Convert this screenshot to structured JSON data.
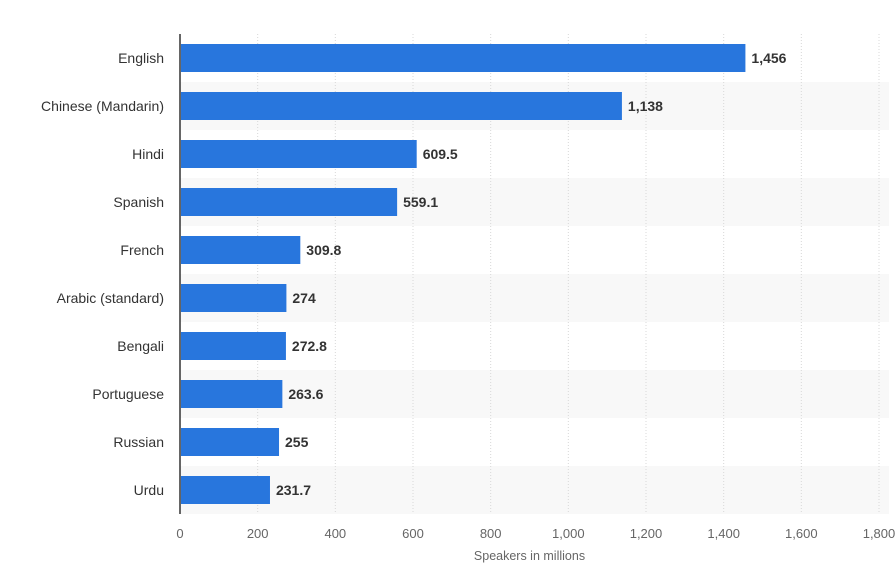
{
  "chart_data": {
    "type": "bar",
    "orientation": "horizontal",
    "categories": [
      "English",
      "Chinese (Mandarin)",
      "Hindi",
      "Spanish",
      "French",
      "Arabic (standard)",
      "Bengali",
      "Portuguese",
      "Russian",
      "Urdu"
    ],
    "values": [
      1456,
      1138,
      609.5,
      559.1,
      309.8,
      274,
      272.8,
      263.6,
      255,
      231.7
    ],
    "value_labels": [
      "1,456",
      "1,138",
      "609.5",
      "559.1",
      "309.8",
      "274",
      "272.8",
      "263.6",
      "255",
      "231.7"
    ],
    "xlabel": "Speakers in millions",
    "ylabel": "",
    "xlim": [
      0,
      1800
    ],
    "xticks": [
      0,
      200,
      400,
      600,
      800,
      1000,
      1200,
      1400,
      1600,
      1800
    ],
    "xtick_labels": [
      "0",
      "200",
      "400",
      "600",
      "800",
      "1,000",
      "1,200",
      "1,400",
      "1,600",
      "1,800"
    ],
    "grid": "vertical dotted",
    "bar_color": "#2876DD",
    "band_color": "#F8F8F8"
  }
}
